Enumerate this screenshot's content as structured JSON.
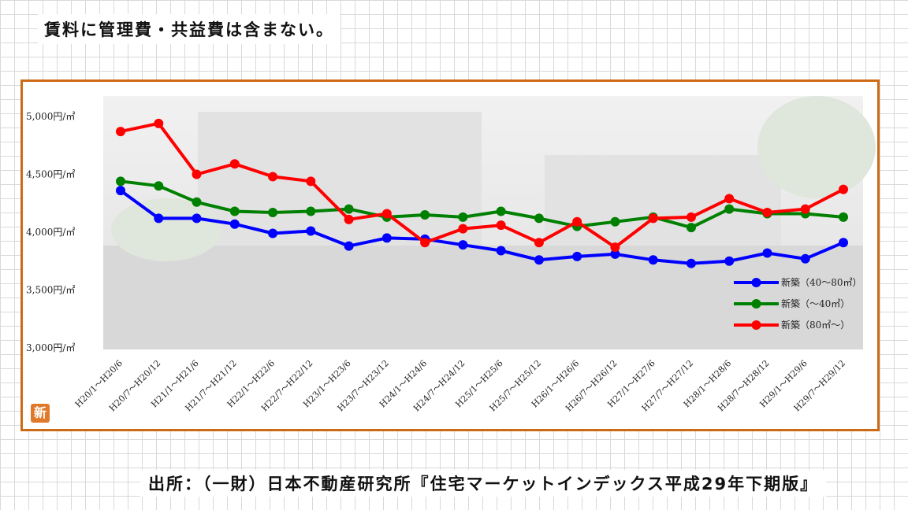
{
  "header_note": "賃料に管理費・共益費は含まない。",
  "badge_char": "新",
  "source_text": "出所：（一財）日本不動産研究所『住宅マーケットインデックス平成29年下期版』",
  "chart_data": {
    "type": "line",
    "title": "",
    "xlabel": "",
    "ylabel": "",
    "ylim": [
      3000,
      5000
    ],
    "y_ticks": [
      5000,
      4500,
      4000,
      3500,
      3000
    ],
    "y_tick_labels": [
      "5,000円/㎡",
      "4,500円/㎡",
      "4,000円/㎡",
      "3,500円/㎡",
      "3,000円/㎡"
    ],
    "categories": [
      "H20/1～H20/6",
      "H20/7～H20/12",
      "H21/1～H21/6",
      "H21/7～H21/12",
      "H22/1～H22/6",
      "H22/7～H22/12",
      "H23/1～H23/6",
      "H23/7～H23/12",
      "H24/1～H24/6",
      "H24/7～H24/12",
      "H25/1～H25/6",
      "H25/7～H25/12",
      "H26/1～H26/6",
      "H26/7～H26/12",
      "H27/1～H27/6",
      "H27/7～H27/12",
      "H28/1～H28/6",
      "H28/7～H28/12",
      "H29/1～H29/6",
      "H29/7～H29/12"
    ],
    "series": [
      {
        "name": "新築（40～80㎡）",
        "color": "#0000ff",
        "values": [
          4360,
          4120,
          4120,
          4070,
          3990,
          4010,
          3880,
          3950,
          3940,
          3890,
          3840,
          3760,
          3790,
          3810,
          3760,
          3730,
          3750,
          3820,
          3770,
          3910
        ]
      },
      {
        "name": "新築（～40㎡）",
        "color": "#008000",
        "values": [
          4440,
          4400,
          4260,
          4180,
          4170,
          4180,
          4200,
          4130,
          4150,
          4130,
          4180,
          4120,
          4050,
          4090,
          4130,
          4040,
          4200,
          4160,
          4160,
          4130
        ]
      },
      {
        "name": "新築（80㎡～）",
        "color": "#ff0000",
        "values": [
          4870,
          4940,
          4500,
          4590,
          4480,
          4440,
          4110,
          4160,
          3910,
          4030,
          4060,
          3910,
          4090,
          3870,
          4120,
          4130,
          4290,
          4170,
          4200,
          4370
        ]
      }
    ],
    "legend_position": "bottom-right",
    "grid": false
  }
}
